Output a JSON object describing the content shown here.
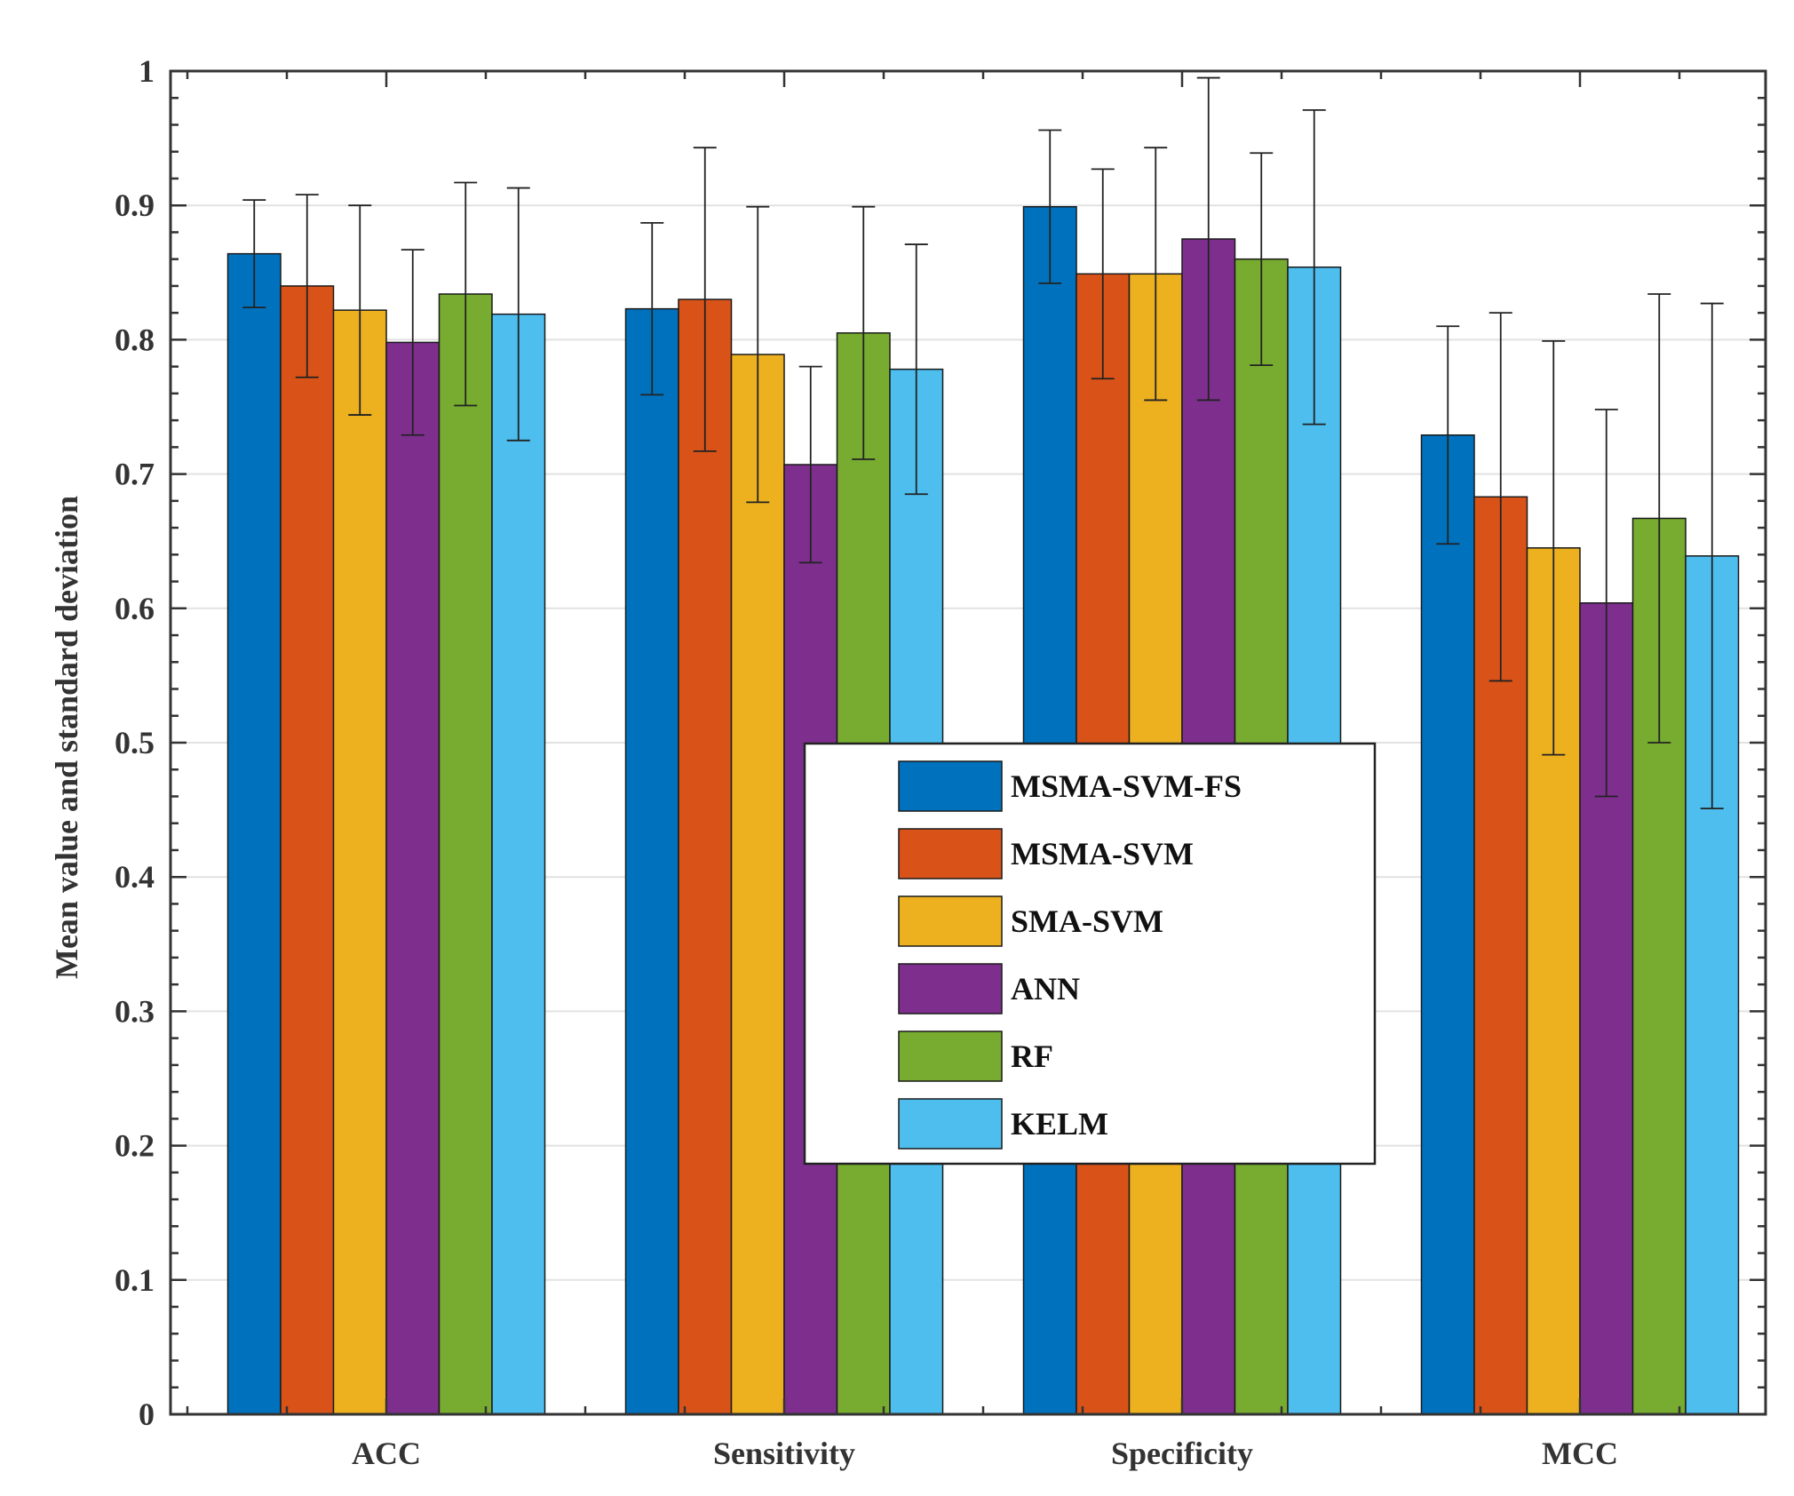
{
  "chart_data": {
    "type": "bar",
    "title": "",
    "xlabel": "",
    "ylabel": "Mean value and standard deviation",
    "ylim": [
      0,
      1
    ],
    "yticks": [
      "0",
      "0.1",
      "0.2",
      "0.3",
      "0.4",
      "0.5",
      "0.6",
      "0.7",
      "0.8",
      "0.9",
      "1"
    ],
    "categories": [
      "ACC",
      "Sensitivity",
      "Specificity",
      "MCC"
    ],
    "grid": true,
    "legend_position": "center",
    "series": [
      {
        "name": "MSMA-SVM-FS",
        "color": "#0072BD",
        "values": [
          0.864,
          0.823,
          0.899,
          0.729
        ],
        "std": [
          0.04,
          0.064,
          0.057,
          0.081
        ]
      },
      {
        "name": "MSMA-SVM",
        "color": "#D95319",
        "values": [
          0.84,
          0.83,
          0.849,
          0.683
        ],
        "std": [
          0.068,
          0.113,
          0.078,
          0.137
        ]
      },
      {
        "name": "SMA-SVM",
        "color": "#EDB120",
        "values": [
          0.822,
          0.789,
          0.849,
          0.645
        ],
        "std": [
          0.078,
          0.11,
          0.094,
          0.154
        ]
      },
      {
        "name": "ANN",
        "color": "#7E2F8E",
        "values": [
          0.798,
          0.707,
          0.875,
          0.604
        ],
        "std": [
          0.069,
          0.073,
          0.12,
          0.144
        ]
      },
      {
        "name": "RF",
        "color": "#77AC30",
        "values": [
          0.834,
          0.805,
          0.86,
          0.667
        ],
        "std": [
          0.083,
          0.094,
          0.079,
          0.167
        ]
      },
      {
        "name": "KELM",
        "color": "#4DBEEE",
        "values": [
          0.819,
          0.778,
          0.854,
          0.639
        ],
        "std": [
          0.094,
          0.093,
          0.117,
          0.188
        ]
      }
    ]
  }
}
